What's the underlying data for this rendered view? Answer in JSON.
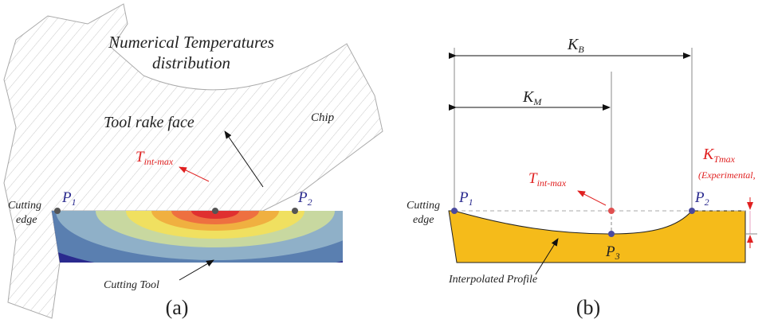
{
  "panels": [
    {
      "caption": "(a)",
      "title_lines": [
        "Numerical Temperatures",
        "distribution"
      ],
      "rake_face": "Tool rake face",
      "chip": "Chip",
      "t_max": {
        "base": "T",
        "sub": "int-max"
      },
      "cutting_edge": [
        "Cutting",
        "edge"
      ],
      "p1": {
        "base": "P",
        "sub": "1"
      },
      "p2": {
        "base": "P",
        "sub": "2"
      },
      "tool": "Cutting Tool"
    },
    {
      "caption": "(b)",
      "kb": {
        "base": "K",
        "sub": "B"
      },
      "km": {
        "base": "K",
        "sub": "M"
      },
      "t_max": {
        "base": "T",
        "sub": "int-max"
      },
      "k_tmax": {
        "base": "K",
        "sub": "Tmax"
      },
      "experimental": "(Experimental,",
      "cutting_edge": [
        "Cutting",
        "edge"
      ],
      "p1": {
        "base": "P",
        "sub": "1"
      },
      "p2": {
        "base": "P",
        "sub": "2"
      },
      "p3": {
        "base": "P",
        "sub": "3"
      },
      "profile": "Interpolated Profile"
    }
  ]
}
